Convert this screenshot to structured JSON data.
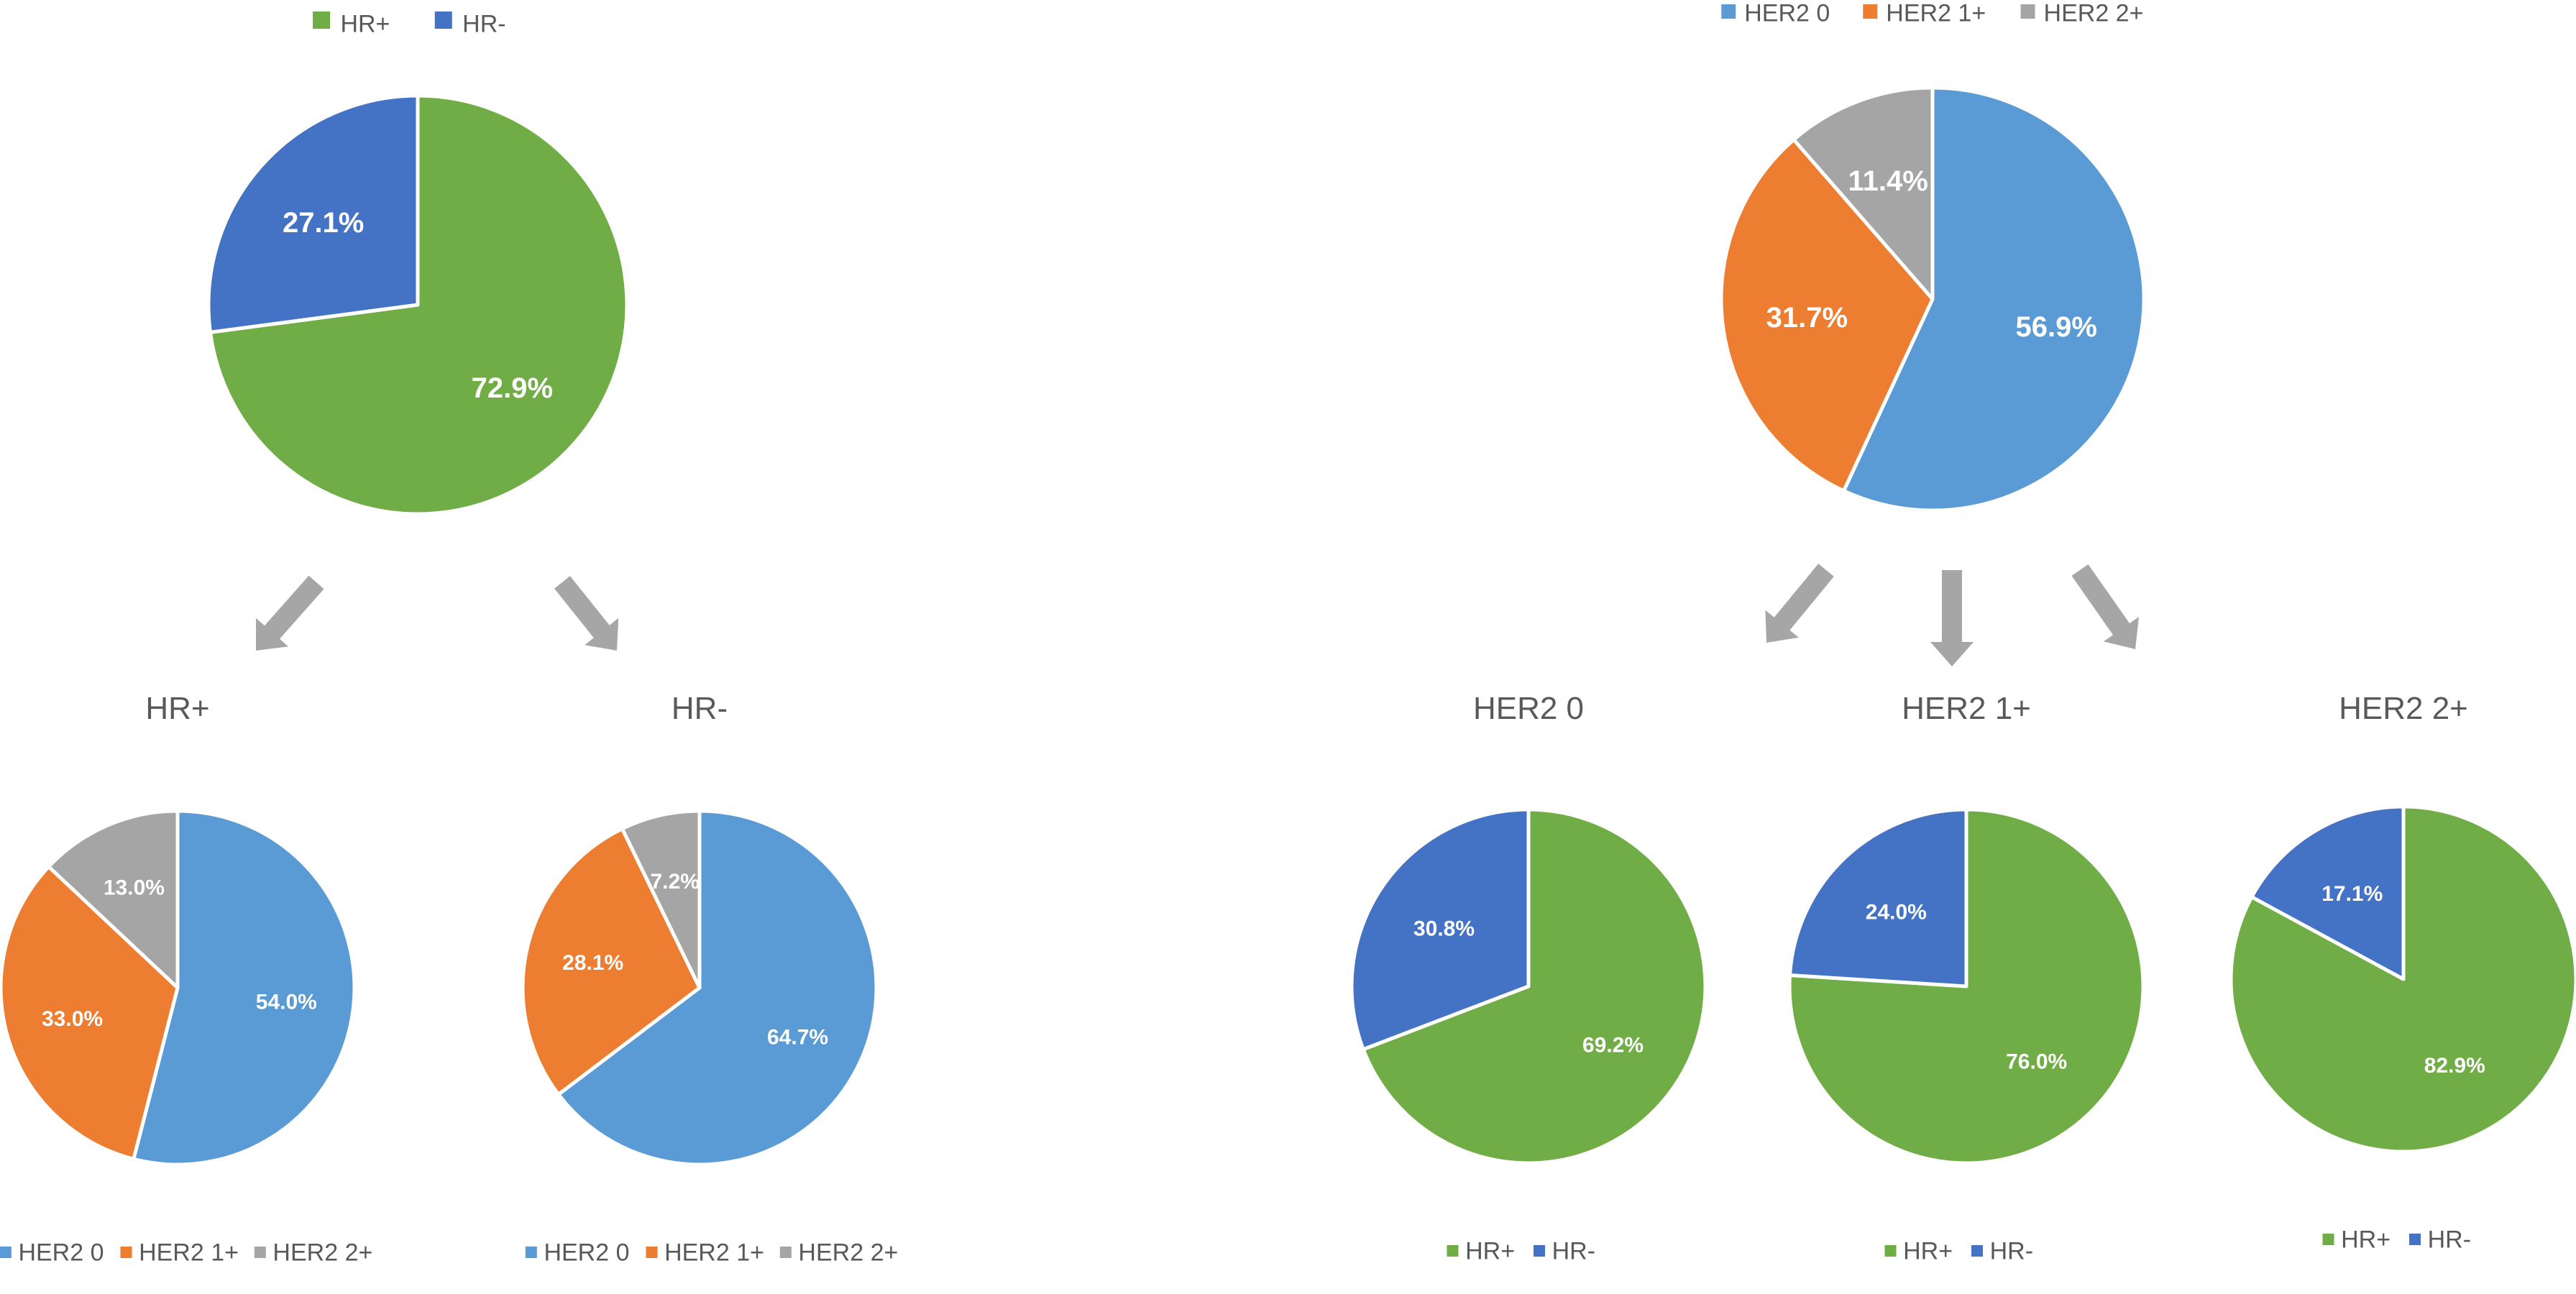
{
  "colors": {
    "hr_pos": "#70AD47",
    "hr_neg": "#4472C4",
    "her2_0": "#5B9BD5",
    "her2_1": "#ED7D31",
    "her2_2": "#A5A5A5",
    "arrow": "#A6A6A6"
  },
  "chart_data": [
    {
      "type": "pie",
      "title": "",
      "legend_placement": "top",
      "slices": [
        {
          "label": "HR+",
          "value": 72.9,
          "display": "72.9%",
          "color": "#70AD47"
        },
        {
          "label": "HR-",
          "value": 27.1,
          "display": "27.1%",
          "color": "#4472C4"
        }
      ]
    },
    {
      "type": "pie",
      "title": "HR+",
      "legend_placement": "bottom",
      "slices": [
        {
          "label": "HER2 0",
          "value": 54.0,
          "display": "54.0%",
          "color": "#5B9BD5"
        },
        {
          "label": "HER2 1+",
          "value": 33.0,
          "display": "33.0%",
          "color": "#ED7D31"
        },
        {
          "label": "HER2 2+",
          "value": 13.0,
          "display": "13.0%",
          "color": "#A5A5A5"
        }
      ]
    },
    {
      "type": "pie",
      "title": "HR-",
      "legend_placement": "bottom",
      "slices": [
        {
          "label": "HER2 0",
          "value": 64.7,
          "display": "64.7%",
          "color": "#5B9BD5"
        },
        {
          "label": "HER2 1+",
          "value": 28.1,
          "display": "28.1%",
          "color": "#ED7D31"
        },
        {
          "label": "HER2 2+",
          "value": 7.2,
          "display": "7.2%",
          "color": "#A5A5A5"
        }
      ]
    },
    {
      "type": "pie",
      "title": "",
      "legend_placement": "top",
      "slices": [
        {
          "label": "HER2 0",
          "value": 56.9,
          "display": "56.9%",
          "color": "#5B9BD5"
        },
        {
          "label": "HER2 1+",
          "value": 31.7,
          "display": "31.7%",
          "color": "#ED7D31"
        },
        {
          "label": "HER2 2+",
          "value": 11.4,
          "display": "11.4%",
          "color": "#A5A5A5"
        }
      ]
    },
    {
      "type": "pie",
      "title": "HER2 0",
      "legend_placement": "bottom",
      "slices": [
        {
          "label": "HR+",
          "value": 69.2,
          "display": "69.2%",
          "color": "#70AD47"
        },
        {
          "label": "HR-",
          "value": 30.8,
          "display": "30.8%",
          "color": "#4472C4"
        }
      ]
    },
    {
      "type": "pie",
      "title": "HER2 1+",
      "legend_placement": "bottom",
      "slices": [
        {
          "label": "HR+",
          "value": 76.0,
          "display": "76.0%",
          "color": "#70AD47"
        },
        {
          "label": "HR-",
          "value": 24.0,
          "display": "24.0%",
          "color": "#4472C4"
        }
      ]
    },
    {
      "type": "pie",
      "title": "HER2 2+",
      "legend_placement": "bottom",
      "slices": [
        {
          "label": "HR+",
          "value": 82.9,
          "display": "82.9%",
          "color": "#70AD47"
        },
        {
          "label": "HR-",
          "value": 17.1,
          "display": "17.1%",
          "color": "#4472C4"
        }
      ]
    }
  ]
}
